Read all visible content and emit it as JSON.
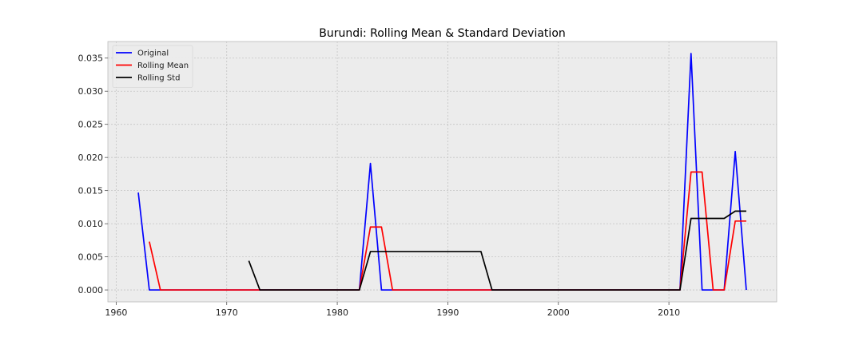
{
  "chart_data": {
    "type": "line",
    "title": "Burundi: Rolling Mean & Standard Deviation",
    "xlabel": "",
    "ylabel": "",
    "xlim": [
      1959.25,
      2019.75
    ],
    "ylim": [
      -0.0018,
      0.0375
    ],
    "x_ticks": [
      1960,
      1970,
      1980,
      1990,
      2000,
      2010
    ],
    "x_tick_labels": [
      "1960",
      "1970",
      "1980",
      "1990",
      "2000",
      "2010"
    ],
    "y_ticks": [
      0.0,
      0.005,
      0.01,
      0.015,
      0.02,
      0.025,
      0.03,
      0.035
    ],
    "y_tick_labels": [
      "0.000",
      "0.005",
      "0.010",
      "0.015",
      "0.020",
      "0.025",
      "0.030",
      "0.035"
    ],
    "grid": true,
    "legend": "top-left",
    "series": [
      {
        "name": "Original",
        "color": "#0000ff",
        "x": [
          1962,
          1963,
          1964,
          1965,
          1966,
          1967,
          1968,
          1969,
          1970,
          1971,
          1972,
          1973,
          1974,
          1975,
          1976,
          1977,
          1978,
          1979,
          1980,
          1981,
          1982,
          1983,
          1984,
          1985,
          1986,
          1987,
          1988,
          1989,
          1990,
          1991,
          1992,
          1993,
          1994,
          1995,
          1996,
          1997,
          1998,
          1999,
          2000,
          2001,
          2002,
          2003,
          2004,
          2005,
          2006,
          2007,
          2008,
          2009,
          2010,
          2011,
          2012,
          2013,
          2014,
          2015,
          2016,
          2017
        ],
        "y": [
          0.0147,
          0,
          0,
          0,
          0,
          0,
          0,
          0,
          0,
          0,
          0,
          0,
          0,
          0,
          0,
          0,
          0,
          0,
          0,
          0,
          0,
          0.0191,
          0,
          0,
          0,
          0,
          0,
          0,
          0,
          0,
          0,
          0,
          0,
          0,
          0,
          0,
          0,
          0,
          0,
          0,
          0,
          0,
          0,
          0,
          0,
          0,
          0,
          0,
          0,
          0,
          0.0357,
          0,
          0,
          0,
          0.0209,
          0
        ]
      },
      {
        "name": "Rolling Mean",
        "color": "#ff0000",
        "x": [
          1963,
          1964,
          1965,
          1966,
          1967,
          1968,
          1969,
          1970,
          1971,
          1972,
          1973,
          1974,
          1975,
          1976,
          1977,
          1978,
          1979,
          1980,
          1981,
          1982,
          1983,
          1984,
          1985,
          1986,
          1987,
          1988,
          1989,
          1990,
          1991,
          1992,
          1993,
          1994,
          1995,
          1996,
          1997,
          1998,
          1999,
          2000,
          2001,
          2002,
          2003,
          2004,
          2005,
          2006,
          2007,
          2008,
          2009,
          2010,
          2011,
          2012,
          2013,
          2014,
          2015,
          2016,
          2017
        ],
        "y": [
          0.0073,
          0,
          0,
          0,
          0,
          0,
          0,
          0,
          0,
          0,
          0,
          0,
          0,
          0,
          0,
          0,
          0,
          0,
          0,
          0,
          0.0095,
          0.0095,
          0,
          0,
          0,
          0,
          0,
          0,
          0,
          0,
          0,
          0,
          0,
          0,
          0,
          0,
          0,
          0,
          0,
          0,
          0,
          0,
          0,
          0,
          0,
          0,
          0,
          0,
          0,
          0.0178,
          0.0178,
          0,
          0,
          0.0104,
          0.0104
        ]
      },
      {
        "name": "Rolling Std",
        "color": "#000000",
        "x": [
          1972,
          1973,
          1974,
          1975,
          1976,
          1977,
          1978,
          1979,
          1980,
          1981,
          1982,
          1983,
          1984,
          1985,
          1986,
          1987,
          1988,
          1989,
          1990,
          1991,
          1992,
          1993,
          1994,
          1995,
          1996,
          1997,
          1998,
          1999,
          2000,
          2001,
          2002,
          2003,
          2004,
          2005,
          2006,
          2007,
          2008,
          2009,
          2010,
          2011,
          2012,
          2013,
          2014,
          2015,
          2016,
          2017
        ],
        "y": [
          0.0044,
          0,
          0,
          0,
          0,
          0,
          0,
          0,
          0,
          0,
          0,
          0.0058,
          0.0058,
          0.0058,
          0.0058,
          0.0058,
          0.0058,
          0.0058,
          0.0058,
          0.0058,
          0.0058,
          0.0058,
          0,
          0,
          0,
          0,
          0,
          0,
          0,
          0,
          0,
          0,
          0,
          0,
          0,
          0,
          0,
          0,
          0,
          0,
          0.0108,
          0.0108,
          0.0108,
          0.0108,
          0.0119,
          0.0119
        ]
      }
    ]
  }
}
